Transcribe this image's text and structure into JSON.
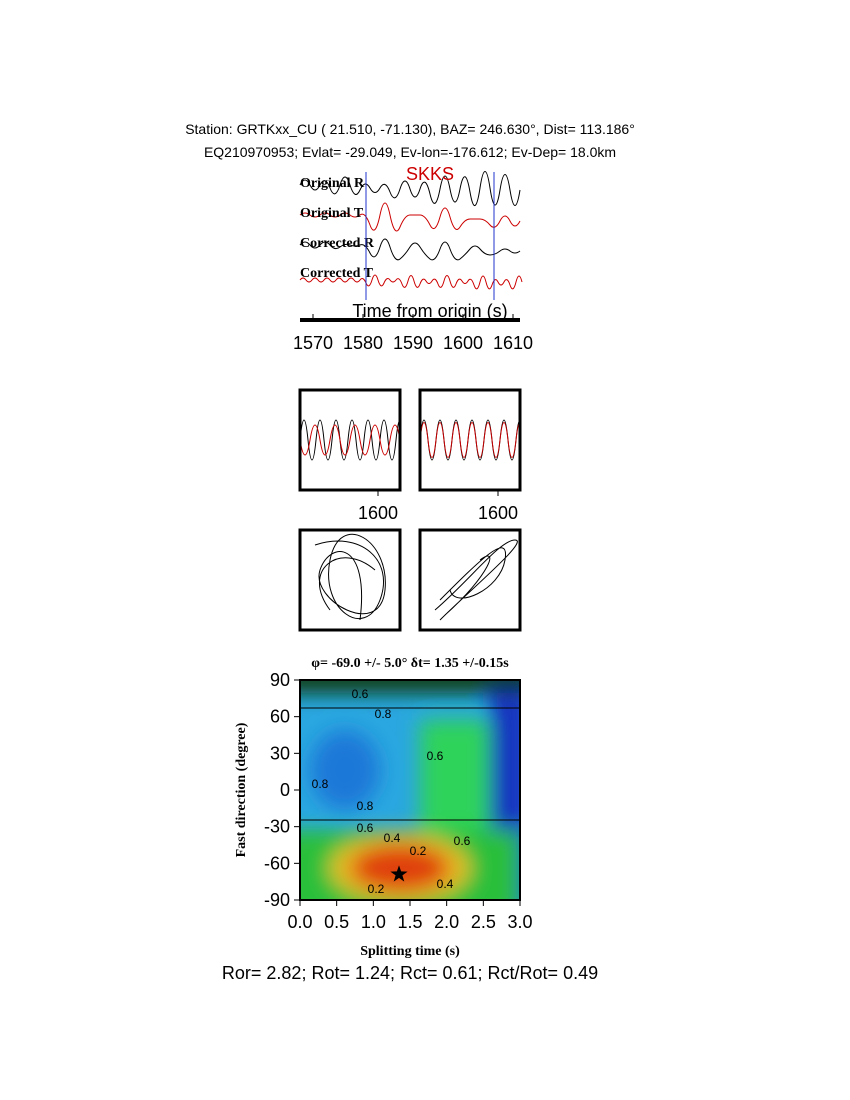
{
  "header": {
    "station": "Station: GRTKxx_CU (  21.510,  -71.130), BAZ=  246.630°, Dist=  113.186°",
    "event": "EQ210970953; Evlat= -29.049, Ev-lon=-176.612; Ev-Dep= 18.0km"
  },
  "chart_data": [
    {
      "type": "waveform",
      "phase": "SKKS",
      "traces": [
        "Original R",
        "Original T",
        "Corrected R",
        "Corrected T"
      ],
      "x_label": "Time from origin (s)",
      "xlim": [
        1567.4,
        1611.4
      ],
      "xticks": [
        1570,
        1580,
        1590,
        1600,
        1610
      ],
      "window": [
        1580.6,
        1606.2
      ]
    },
    {
      "type": "waveform-pair",
      "xlim": [
        1584.4,
        1604.4
      ],
      "xticks": [
        1600
      ]
    },
    {
      "type": "contour",
      "title": "φ= -69.0 +/- 5.0° δt= 1.35 +/-0.15s",
      "x_label": "Splitting time (s)",
      "y_label": "Fast direction (degree)",
      "xlim": [
        0,
        3
      ],
      "ylim": [
        -90,
        90
      ],
      "xticks": [
        {
          "value": 0,
          "label": "0.0"
        },
        0.5,
        {
          "value": 1,
          "label": "1.0"
        },
        1.5,
        {
          "value": 2,
          "label": "2.0"
        },
        2.5,
        {
          "value": 3,
          "label": "3.0"
        }
      ],
      "yticks": [
        90,
        60,
        30,
        0,
        -30,
        -60,
        -90
      ],
      "best": {
        "dt": 1.35,
        "phi": -69
      },
      "contour_labels": [
        0.6,
        0.8,
        0.8,
        0.8,
        0.6,
        0.6,
        0.4,
        0.2,
        0.6,
        0.2,
        0.4
      ]
    }
  ],
  "footer": "Ror= 2.82; Rot= 1.24; Rct= 0.61; Rct/Rot= 0.49"
}
